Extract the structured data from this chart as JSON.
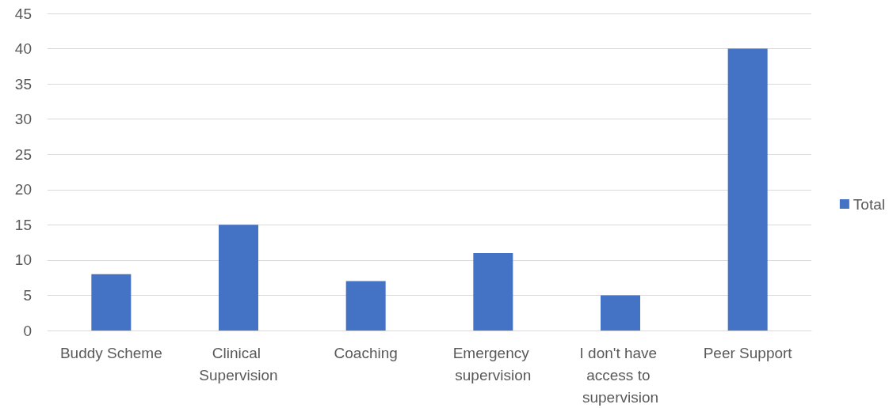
{
  "chart_data": {
    "type": "bar",
    "categories": [
      "Buddy Scheme",
      "Clinical Supervision",
      "Coaching",
      "Emergency supervision",
      "I don't have access to supervision",
      "Peer Support"
    ],
    "series": [
      {
        "name": "Total",
        "color": "#4472c4",
        "values": [
          8,
          15,
          7,
          11,
          5,
          40
        ]
      }
    ],
    "ylim": [
      0,
      45
    ],
    "yticks": [
      0,
      5,
      10,
      15,
      20,
      25,
      30,
      35,
      40,
      45
    ],
    "grid": "y",
    "legend": "right"
  }
}
